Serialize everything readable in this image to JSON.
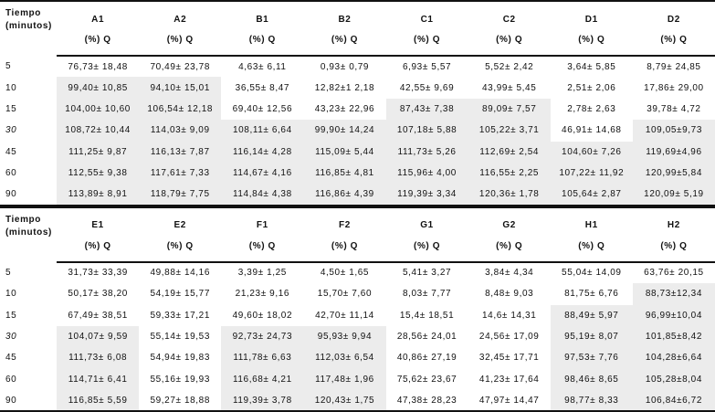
{
  "row_header_label": "Tiempo",
  "row_header_sub": "(minutos)",
  "unit_label": "(%) Q",
  "time_points": [
    "5",
    "10",
    "15",
    "30",
    "45",
    "60",
    "90"
  ],
  "shade_color": "#ececec",
  "tables": [
    {
      "columns": [
        "A1",
        "A2",
        "B1",
        "B2",
        "C1",
        "C2",
        "D1",
        "D2"
      ],
      "rows": [
        [
          "76,73± 18,48",
          "70,49± 23,78",
          "4,63± 6,11",
          "0,93± 0,79",
          "6,93± 5,57",
          "5,52± 2,42",
          "3,64± 5,85",
          "8,79± 24,85"
        ],
        [
          "99,40± 10,85",
          "94,10± 15,01",
          "36,55± 8,47",
          "12,82±1 2,18",
          "42,55± 9,69",
          "43,99± 5,45",
          "2,51± 2,06",
          "17,86± 29,00"
        ],
        [
          "104,00± 10,60",
          "106,54± 12,18",
          "69,40± 12,56",
          "43,23± 22,96",
          "87,43± 7,38",
          "89,09± 7,57",
          "2,78± 2,63",
          "39,78± 4,72"
        ],
        [
          "108,72± 10,44",
          "114,03± 9,09",
          "108,11± 6,64",
          "99,90± 14,24",
          "107,18± 5,88",
          "105,22± 3,71",
          "46,91± 14,68",
          "109,05±9,73"
        ],
        [
          "111,25± 9,87",
          "116,13± 7,87",
          "116,14± 4,28",
          "115,09± 5,44",
          "111,73± 5,26",
          "112,69± 2,54",
          "104,60± 7,26",
          "119,69±4,96"
        ],
        [
          "112,55± 9,38",
          "117,61± 7,33",
          "114,67± 4,16",
          "116,85± 4,81",
          "115,96± 4,00",
          "116,55± 2,25",
          "107,22± 11,92",
          "120,99±5,84"
        ],
        [
          "113,89± 8,91",
          "118,79± 7,75",
          "114,84± 4,38",
          "116,86± 4,39",
          "119,39± 3,34",
          "120,36± 1,78",
          "105,64± 2,87",
          "120,09± 5,19"
        ]
      ],
      "shaded": [
        [
          0,
          0,
          0,
          0,
          0,
          0,
          0,
          0
        ],
        [
          1,
          1,
          0,
          0,
          0,
          0,
          0,
          0
        ],
        [
          1,
          1,
          0,
          0,
          1,
          1,
          0,
          0
        ],
        [
          1,
          1,
          1,
          1,
          1,
          1,
          0,
          1
        ],
        [
          1,
          1,
          1,
          1,
          1,
          1,
          1,
          1
        ],
        [
          1,
          1,
          1,
          1,
          1,
          1,
          1,
          1
        ],
        [
          1,
          1,
          1,
          1,
          1,
          1,
          1,
          1
        ]
      ]
    },
    {
      "columns": [
        "E1",
        "E2",
        "F1",
        "F2",
        "G1",
        "G2",
        "H1",
        "H2"
      ],
      "rows": [
        [
          "31,73± 33,39",
          "49,88± 14,16",
          "3,39± 1,25",
          "4,50± 1,65",
          "5,41± 3,27",
          "3,84± 4,34",
          "55,04± 14,09",
          "63,76± 20,15"
        ],
        [
          "50,17± 38,20",
          "54,19± 15,77",
          "21,23± 9,16",
          "15,70± 7,60",
          "8,03± 7,77",
          "8,48± 9,03",
          "81,75± 6,76",
          "88,73±12,34"
        ],
        [
          "67,49± 38,51",
          "59,33± 17,21",
          "49,60± 18,02",
          "42,70± 11,14",
          "15,4± 18,51",
          "14,6± 14,31",
          "88,49± 5,97",
          "96,99±10,04"
        ],
        [
          "104,07± 9,59",
          "55,14± 19,53",
          "92,73± 24,73",
          "95,93± 9,94",
          "28,56± 24,01",
          "24,56± 17,09",
          "95,19± 8,07",
          "101,85±8,42"
        ],
        [
          "111,73± 6,08",
          "54,94± 19,83",
          "111,78± 6,63",
          "112,03± 6,54",
          "40,86± 27,19",
          "32,45± 17,71",
          "97,53± 7,76",
          "104,28±6,64"
        ],
        [
          "114,71± 6,41",
          "55,16± 19,93",
          "116,68± 4,21",
          "117,48± 1,96",
          "75,62± 23,67",
          "41,23± 17,64",
          "98,46± 8,65",
          "105,28±8,04"
        ],
        [
          "116,85± 5,59",
          "59,27± 18,88",
          "119,39± 3,78",
          "120,43± 1,75",
          "47,38± 28,23",
          "47,97± 14,47",
          "98,77± 8,33",
          "106,84±6,72"
        ]
      ],
      "shaded": [
        [
          0,
          0,
          0,
          0,
          0,
          0,
          0,
          0
        ],
        [
          0,
          0,
          0,
          0,
          0,
          0,
          0,
          1
        ],
        [
          0,
          0,
          0,
          0,
          0,
          0,
          1,
          1
        ],
        [
          1,
          0,
          1,
          1,
          0,
          0,
          1,
          1
        ],
        [
          1,
          0,
          1,
          1,
          0,
          0,
          1,
          1
        ],
        [
          1,
          0,
          1,
          1,
          0,
          0,
          1,
          1
        ],
        [
          1,
          0,
          1,
          1,
          0,
          0,
          1,
          1
        ]
      ]
    }
  ]
}
